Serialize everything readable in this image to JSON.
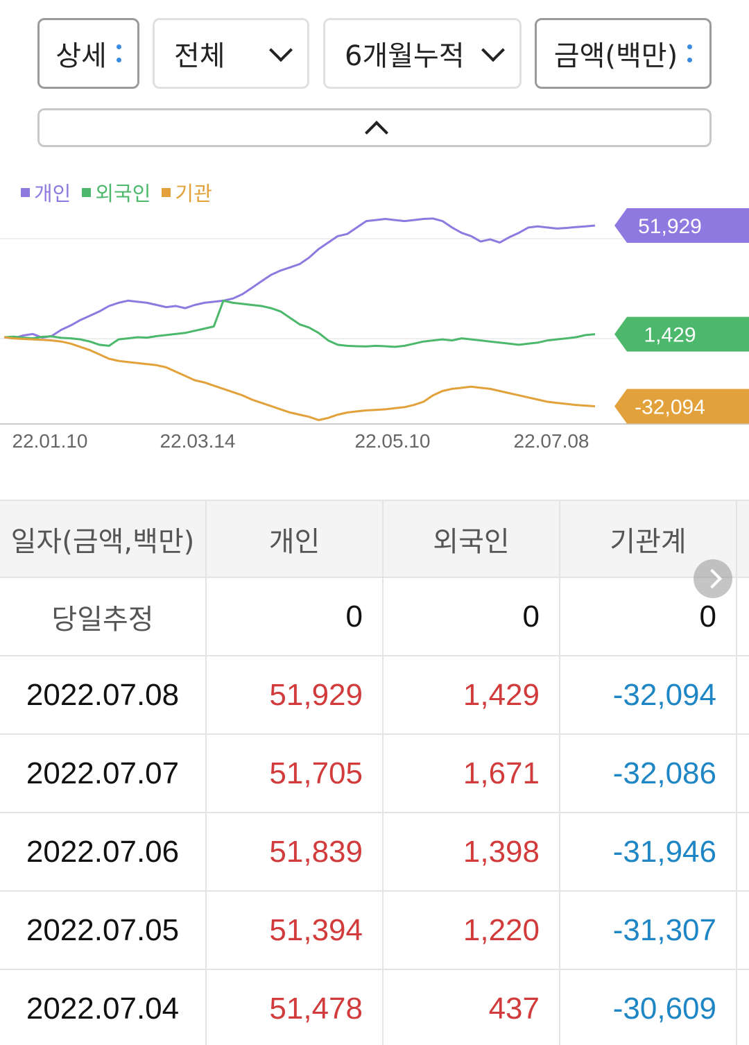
{
  "filters": {
    "detail_label": "상세",
    "scope_value": "전체",
    "period_value": "6개월누적",
    "unit_label": "금액(백만)"
  },
  "colors": {
    "individual": "#8e79e0",
    "foreign": "#4cb86b",
    "institution": "#e2a13a",
    "positive": "#d23b3b",
    "negative": "#1e86c4"
  },
  "chart_data": {
    "type": "line",
    "legend": [
      "개인",
      "외국인",
      "기관"
    ],
    "x_ticks": [
      "22.01.10",
      "22.03.14",
      "22.05.10",
      "22.07.08"
    ],
    "ylim": [
      -40000,
      60000
    ],
    "series": [
      {
        "name": "개인",
        "end_label": "51,929",
        "values": [
          0,
          -500,
          800,
          1500,
          -200,
          600,
          3500,
          5500,
          8000,
          10000,
          12000,
          14500,
          16000,
          17000,
          16500,
          16000,
          15000,
          14000,
          14500,
          13500,
          15000,
          16000,
          16500,
          17000,
          18000,
          20000,
          23000,
          26000,
          29000,
          31000,
          32500,
          34000,
          37000,
          41000,
          44000,
          47000,
          48000,
          51000,
          54000,
          54500,
          55000,
          54500,
          54000,
          54500,
          55000,
          55200,
          54000,
          51000,
          48500,
          47000,
          44500,
          45500,
          44000,
          46500,
          48500,
          51000,
          51500,
          51000,
          50500,
          50800,
          51200,
          51500,
          51929
        ]
      },
      {
        "name": "외국인",
        "end_label": "1,429",
        "values": [
          0,
          300,
          -200,
          -500,
          200,
          400,
          -300,
          -500,
          -1000,
          -2000,
          -3500,
          -4000,
          -1000,
          -500,
          0,
          -200,
          500,
          1000,
          1500,
          2000,
          3000,
          4000,
          5000,
          17000,
          16000,
          15500,
          15000,
          14500,
          13500,
          12000,
          9000,
          6000,
          4500,
          2000,
          -1500,
          -3500,
          -4000,
          -4200,
          -4300,
          -4000,
          -4200,
          -4500,
          -4000,
          -3000,
          -2000,
          -1500,
          -1000,
          -1500,
          -500,
          -1000,
          -1500,
          -2000,
          -2500,
          -3000,
          -3500,
          -3000,
          -2500,
          -1500,
          -1000,
          -500,
          0,
          1000,
          1429
        ]
      },
      {
        "name": "기관",
        "end_label": "-32,094",
        "values": [
          0,
          -500,
          -800,
          -1000,
          -1200,
          -1500,
          -2000,
          -3000,
          -4500,
          -6000,
          -8000,
          -10000,
          -11000,
          -11500,
          -12000,
          -12500,
          -13000,
          -14000,
          -16000,
          -18000,
          -20000,
          -21000,
          -22500,
          -24000,
          -25500,
          -27000,
          -29000,
          -30500,
          -32000,
          -33500,
          -35000,
          -36000,
          -37000,
          -38500,
          -37500,
          -36000,
          -35000,
          -34500,
          -34000,
          -33800,
          -33500,
          -33000,
          -32500,
          -31500,
          -30000,
          -27000,
          -25000,
          -24000,
          -23500,
          -23000,
          -23500,
          -24000,
          -25000,
          -26000,
          -27000,
          -28000,
          -29000,
          -30000,
          -30500,
          -31000,
          -31500,
          -31800,
          -32094
        ]
      }
    ]
  },
  "table": {
    "headers": [
      "일자(금액,백만)",
      "개인",
      "외국인",
      "기관계"
    ],
    "today_row": {
      "label": "당일추정",
      "individual": "0",
      "foreign": "0",
      "institution": "0"
    },
    "rows": [
      {
        "date": "2022.07.08",
        "individual": "51,929",
        "foreign": "1,429",
        "institution": "-32,094"
      },
      {
        "date": "2022.07.07",
        "individual": "51,705",
        "foreign": "1,671",
        "institution": "-32,086"
      },
      {
        "date": "2022.07.06",
        "individual": "51,839",
        "foreign": "1,398",
        "institution": "-31,946"
      },
      {
        "date": "2022.07.05",
        "individual": "51,394",
        "foreign": "1,220",
        "institution": "-31,307"
      },
      {
        "date": "2022.07.04",
        "individual": "51,478",
        "foreign": "437",
        "institution": "-30,609"
      }
    ]
  }
}
